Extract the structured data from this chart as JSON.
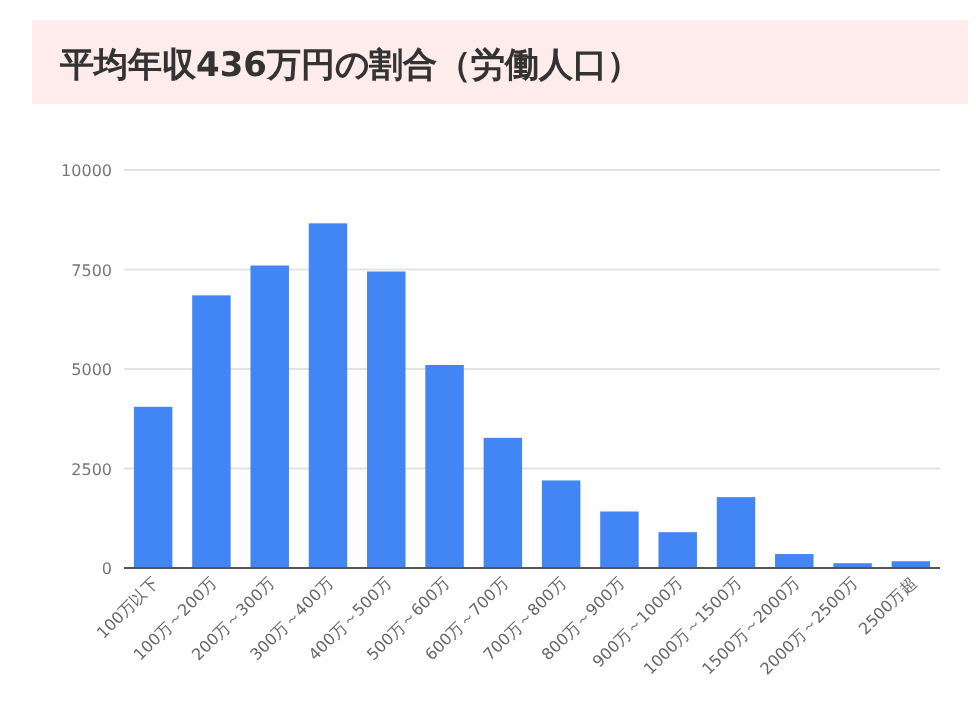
{
  "chart_data": {
    "type": "bar",
    "title": "平均年収436万円の割合（労働人口）",
    "categories": [
      "100万以下",
      "100万～200万",
      "200万～300万",
      "300万～400万",
      "400万～500万",
      "500万～600万",
      "600万～700万",
      "700万～800万",
      "800万～900万",
      "900万～1000万",
      "1000万～1500万",
      "1500万～2000万",
      "2000万～2500万",
      "2500万超"
    ],
    "values": [
      4050,
      6850,
      7600,
      8660,
      7450,
      5100,
      3270,
      2200,
      1420,
      900,
      1780,
      350,
      120,
      170
    ],
    "color": "#4285f4",
    "ylim": [
      0,
      10000
    ],
    "yticks": [
      0,
      2500,
      5000,
      7500,
      10000
    ],
    "grid": "y"
  }
}
